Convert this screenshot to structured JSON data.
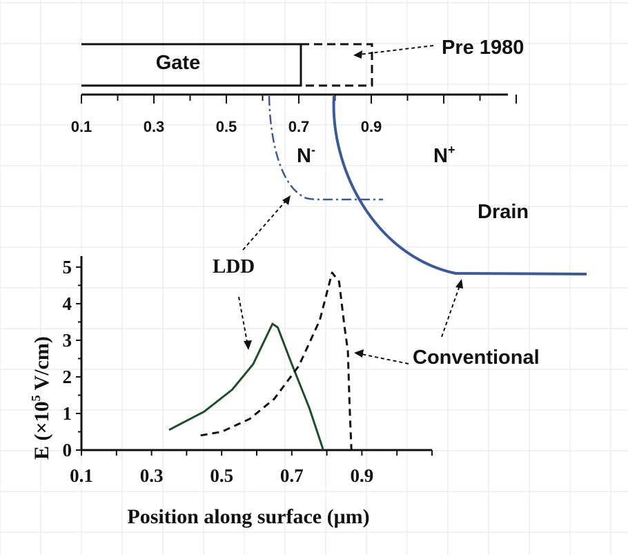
{
  "labels": {
    "gate": "Gate",
    "pre1980": "Pre 1980",
    "n_minus": "N",
    "n_minus_sup": "-",
    "n_plus": "N",
    "n_plus_sup": "+",
    "drain": "Drain",
    "ldd": "LDD",
    "conventional": "Conventional"
  },
  "top_axis": {
    "ticks": [
      "0.1",
      "0.3",
      "0.5",
      "0.7",
      "0.9"
    ]
  },
  "colors": {
    "ink": "#111111",
    "junction": "#3d5a96",
    "ldd_curve": "#1e4d2b",
    "grid": "#e6e6e6"
  },
  "chart_data": {
    "type": "line",
    "xlabel": "Position along surface (μm)",
    "ylabel_main": "E  (×10",
    "ylabel_sup": "5",
    "ylabel_tail": " V/cm)",
    "xlim": [
      0.1,
      1.1
    ],
    "ylim": [
      0,
      5.3
    ],
    "x_ticks": [
      "0.1",
      "0.3",
      "0.5",
      "0.7",
      "0.9"
    ],
    "y_ticks": [
      "0",
      "1",
      "2",
      "3",
      "4",
      "5"
    ],
    "series": [
      {
        "name": "LDD",
        "style": "solid",
        "x": [
          0.35,
          0.45,
          0.53,
          0.59,
          0.63,
          0.645,
          0.66,
          0.7,
          0.75,
          0.79
        ],
        "y": [
          0.55,
          1.05,
          1.65,
          2.35,
          3.15,
          3.45,
          3.35,
          2.35,
          1.15,
          0.0
        ]
      },
      {
        "name": "Conventional",
        "style": "dashed",
        "x": [
          0.44,
          0.5,
          0.58,
          0.65,
          0.72,
          0.78,
          0.815,
          0.835,
          0.85,
          0.86,
          0.865,
          0.87
        ],
        "y": [
          0.4,
          0.5,
          0.85,
          1.4,
          2.3,
          3.55,
          4.85,
          4.6,
          3.4,
          2.7,
          1.2,
          0.0
        ]
      }
    ]
  }
}
